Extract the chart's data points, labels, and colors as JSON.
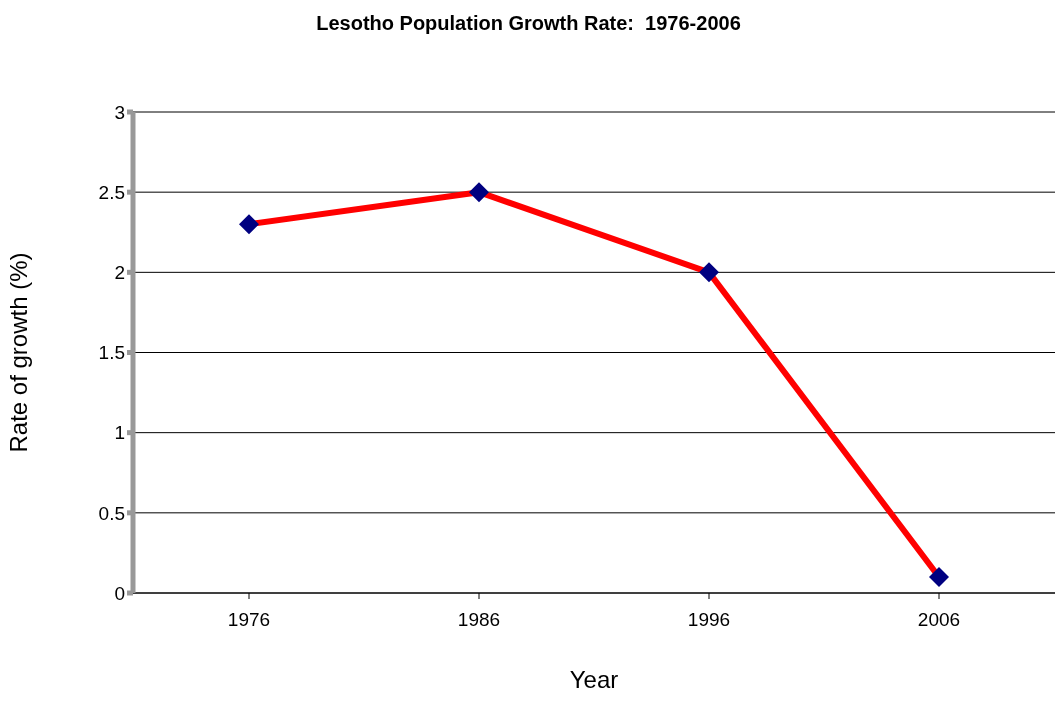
{
  "chart_data": {
    "type": "line",
    "title": "Lesotho Population Growth Rate:  1976-2006",
    "xlabel": "Year",
    "ylabel": "Rate of growth (%)",
    "categories": [
      "1976",
      "1986",
      "1996",
      "2006"
    ],
    "series": [
      {
        "color": "#ff0000",
        "colors": [
          "#000080",
          "#000080",
          "#000080",
          "#000080"
        ],
        "values": [
          2.3,
          2.5,
          2.0,
          0.1
        ]
      }
    ],
    "ylim": [
      0,
      3
    ],
    "yticks": [
      0,
      0.5,
      1,
      1.5,
      2,
      2.5,
      3
    ],
    "grid": "y",
    "legend": false,
    "marker": "diamond",
    "line_style": "solid"
  }
}
